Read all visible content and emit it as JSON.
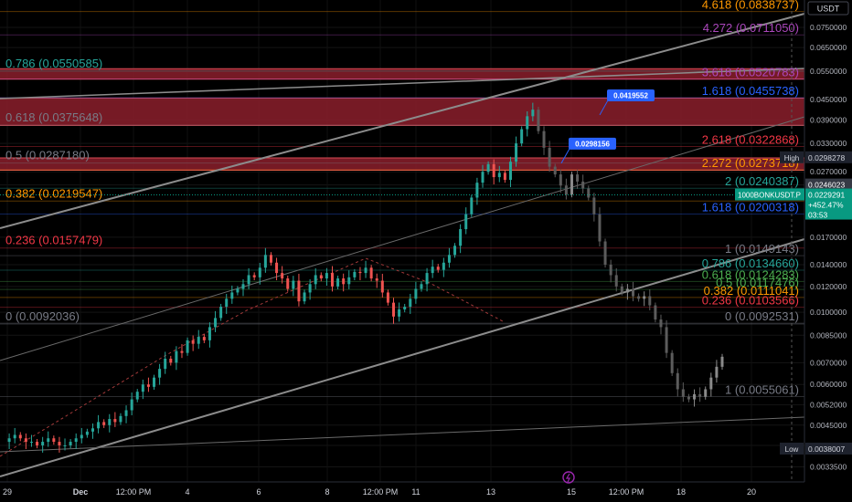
{
  "chart_data": {
    "type": "line",
    "title": "",
    "ylabel": "",
    "xlabel": "",
    "y_scale": "log",
    "ylim": [
      0.0031,
      0.09
    ],
    "currency": "USDT",
    "price_ticks": [
      "0.0750000",
      "0.0650000",
      "0.0550000",
      "0.0450000",
      "0.0390000",
      "0.0330000",
      "0.0270000",
      "0.0246023",
      "0.0170000",
      "0.0140000",
      "0.0120000",
      "0.0100000",
      "0.0085000",
      "0.0070000",
      "0.0060000",
      "0.0052000",
      "0.0045000",
      "0.0039000",
      "0.0033500"
    ],
    "x_ticks": [
      "29",
      "Dec",
      "12:00 PM",
      "4",
      "6",
      "8",
      "12:00 PM",
      "11",
      "13",
      "15",
      "12:00 PM",
      "18",
      "20"
    ],
    "series": [
      {
        "values": [
          0.004,
          0.0041,
          0.0042,
          0.0041,
          0.004,
          0.004,
          0.0039,
          0.004,
          0.0041,
          0.004,
          0.0039,
          0.0039,
          0.004,
          0.0041,
          0.0042,
          0.0043,
          0.0044,
          0.0046,
          0.0045,
          0.0047,
          0.0046,
          0.0048,
          0.005,
          0.0054,
          0.0057,
          0.006,
          0.0059,
          0.0063,
          0.0067,
          0.0072,
          0.007,
          0.0076,
          0.0075,
          0.0082,
          0.008,
          0.0084,
          0.0082,
          0.009,
          0.0096,
          0.0104,
          0.011,
          0.0115,
          0.0118,
          0.0122,
          0.013,
          0.0128,
          0.0137,
          0.015,
          0.0142,
          0.0132,
          0.0127,
          0.0118,
          0.0125,
          0.0108,
          0.0115,
          0.0122,
          0.013,
          0.0127,
          0.0132,
          0.012,
          0.0127,
          0.0122,
          0.0128,
          0.0133,
          0.0132,
          0.0137,
          0.0127,
          0.0125,
          0.0115,
          0.0107,
          0.0097,
          0.0102,
          0.0104,
          0.011,
          0.0118,
          0.0122,
          0.0132,
          0.0138,
          0.0135,
          0.0142,
          0.015,
          0.016,
          0.018,
          0.02,
          0.0225,
          0.025,
          0.027,
          0.0285,
          0.026,
          0.0268,
          0.0255,
          0.029,
          0.033,
          0.0365,
          0.04,
          0.0419,
          0.036,
          0.032,
          0.028,
          0.0265,
          0.0245,
          0.023,
          0.0265,
          0.0252,
          0.024,
          0.0225,
          0.02,
          0.0165,
          0.014,
          0.013,
          0.012,
          0.0115,
          0.0118,
          0.0112,
          0.011,
          0.0112,
          0.0105,
          0.0095,
          0.009,
          0.0075,
          0.0065,
          0.0058,
          0.0055,
          0.0054,
          0.0056,
          0.0055,
          0.0058,
          0.0063,
          0.0068,
          0.0073
        ]
      }
    ],
    "swing_labels": [
      {
        "text": "0.0419552",
        "value": 0.0419552
      },
      {
        "text": "0.0298156",
        "value": 0.0298156
      }
    ],
    "fib_left": [
      {
        "label": "0.786 (0.0550585)",
        "value": 0.0550585,
        "color": "#26a69a"
      },
      {
        "label": "0.618 (0.0375648)",
        "value": 0.0375648,
        "color": "#787b86"
      },
      {
        "label": "0.5 (0.0287180)",
        "value": 0.028718,
        "color": "#787b86"
      },
      {
        "label": "0.382 (0.0219547)",
        "value": 0.0219547,
        "color": "#ff9800"
      },
      {
        "label": "0.236 (0.0157479)",
        "value": 0.0157479,
        "color": "#f23645"
      },
      {
        "label": "0 (0.0092036)",
        "value": 0.0092036,
        "color": "#787b86"
      }
    ],
    "fib_right": [
      {
        "label": "4.618 (0.0838737)",
        "value": 0.0838737,
        "color": "#ff9800"
      },
      {
        "label": "4.272 (0.0711050)",
        "value": 0.071105,
        "color": "#ab47bc"
      },
      {
        "label": "3.618 (0.0520783)",
        "value": 0.0520783,
        "color": "#ab47bc"
      },
      {
        "label": "1.618 (0.0455738)",
        "value": 0.0455738,
        "color": "#2962ff"
      },
      {
        "label": "2.618 (0.0322868)",
        "value": 0.0322868,
        "color": "#f23645"
      },
      {
        "label": "2.272 (0.0273718)",
        "value": 0.0273718,
        "color": "#ff9800"
      },
      {
        "label": "2 (0.0240387)",
        "value": 0.0240387,
        "color": "#26a69a"
      },
      {
        "label": "1.618 (0.0200318)",
        "value": 0.0200318,
        "color": "#2962ff"
      },
      {
        "label": "1 (0.0149143)",
        "value": 0.0149143,
        "color": "#787b86"
      },
      {
        "label": "0.786 (0.0134660)",
        "value": 0.013466,
        "color": "#26a69a"
      },
      {
        "label": "0.618 (0.0124283)",
        "value": 0.0124283,
        "color": "#4caf50"
      },
      {
        "label": "0.5 (0.0117476)",
        "value": 0.0117476,
        "color": "#4caf50"
      },
      {
        "label": "0.382 (0.0111041)",
        "value": 0.0111041,
        "color": "#ff9800"
      },
      {
        "label": "0.236 (0.0103566)",
        "value": 0.0103566,
        "color": "#f23645"
      },
      {
        "label": "0 (0.0092531)",
        "value": 0.0092531,
        "color": "#787b86"
      },
      {
        "label": "1 (0.0055061)",
        "value": 0.0055061,
        "color": "#787b86"
      }
    ],
    "zones": [
      {
        "from": 0.052,
        "to": 0.056
      },
      {
        "from": 0.0375,
        "to": 0.0455
      },
      {
        "from": 0.0273,
        "to": 0.0298
      }
    ],
    "markers": {
      "high": {
        "label": "High",
        "value": "0.0298278",
        "level": 0.0298278
      },
      "current": {
        "value": "0.0246023",
        "level": 0.0246023
      },
      "symbol": {
        "name": "1000BONKUSDT.P",
        "price": "0.0229291",
        "change": "+452.47%",
        "countdown": "03:53",
        "level": 0.0229291
      },
      "low": {
        "label": "Low",
        "value": "0.0038007",
        "level": 0.0038007
      }
    }
  }
}
